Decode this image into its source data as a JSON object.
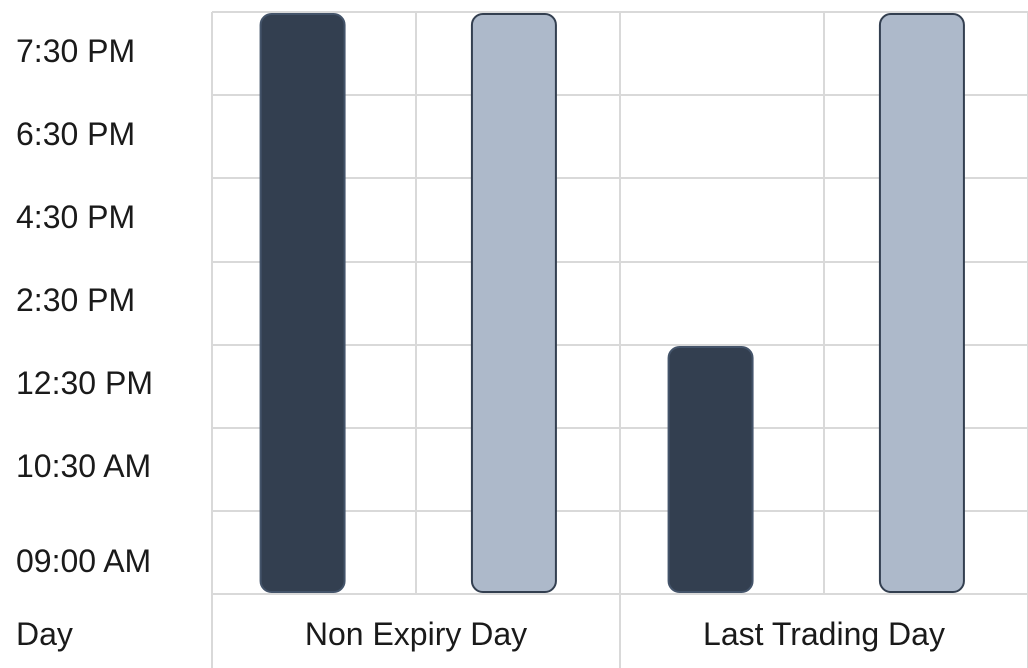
{
  "chart_data": {
    "type": "bar",
    "title": "",
    "xlabel": "Day",
    "ylabel": "",
    "y_ticks": [
      "09:00 AM",
      "10:30 AM",
      "12:30 PM",
      "2:30 PM",
      "4:30 PM",
      "6:30 PM",
      "7:30 PM"
    ],
    "categories": [
      "Non Expiry Day",
      "Last Trading Day"
    ],
    "series": [
      {
        "color": "#333f50",
        "end_values": [
          "7:30 PM",
          "12:30 PM"
        ]
      },
      {
        "color": "#adb9ca",
        "end_values": [
          "7:30 PM",
          "7:30 PM"
        ]
      }
    ],
    "bar_start": "09:00 AM",
    "grid": true
  }
}
